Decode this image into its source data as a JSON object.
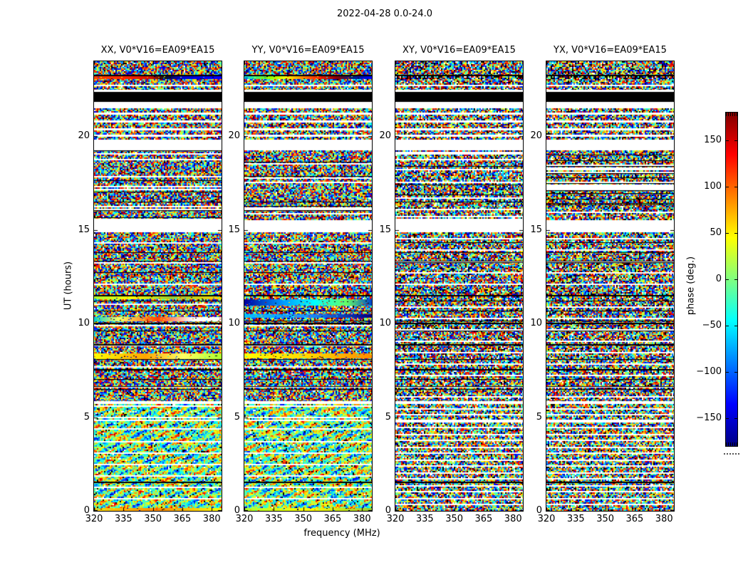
{
  "figure": {
    "title": "2022-04-28 0.0-24.0",
    "background": "#ffffff"
  },
  "chart_data": {
    "type": "heatmap",
    "title": "2022-04-28 0.0-24.0",
    "description": "Four visibility-phase waterfall panels (polarizations XX, YY, XY, YX) for baseline V0*V16=EA09*EA15; phase is noise-like, uniformly distributed in [-180,180] deg; white rows are flagged time gaps, black rows are saturated scans.",
    "x": {
      "label": "frequency (MHz)",
      "lim": [
        320,
        385
      ],
      "ticks": [
        320,
        335,
        350,
        365,
        380
      ]
    },
    "y": {
      "label": "UT (hours)",
      "lim": [
        0,
        24
      ],
      "ticks": [
        0,
        5,
        10,
        15,
        20
      ]
    },
    "colorbar": {
      "label": "phase (deg.)",
      "lim": [
        -180,
        180
      ],
      "ticks": [
        150,
        100,
        50,
        0,
        -50,
        -100,
        -150
      ],
      "tick_labels": [
        "150",
        "100",
        "50",
        "0",
        "−50",
        "−100",
        "−150"
      ],
      "colormap": "jet",
      "stops": [
        [
          0,
          "#000083"
        ],
        [
          0.125,
          "#0000ff"
        ],
        [
          0.375,
          "#00ffff"
        ],
        [
          0.625,
          "#ffff00"
        ],
        [
          0.875,
          "#ff0000"
        ],
        [
          1,
          "#800000"
        ]
      ]
    },
    "panels": [
      {
        "id": "XX",
        "title": "XX, V0*V16=EA09*EA15",
        "seed": 11,
        "white_frac": 0.02,
        "dark_frac": 0.04,
        "sep_factor": 1.0,
        "moire_mix": 0.45
      },
      {
        "id": "YY",
        "title": "YY, V0*V16=EA09*EA15",
        "seed": 22,
        "white_frac": 0.02,
        "dark_frac": 0.04,
        "sep_factor": 1.0,
        "moire_mix": 0.45
      },
      {
        "id": "XY",
        "title": "XY, V0*V16=EA09*EA15",
        "seed": 33,
        "white_frac": 0.05,
        "dark_frac": 0.08,
        "sep_factor": 0.55,
        "moire_mix": 0.9
      },
      {
        "id": "YX",
        "title": "YX, V0*V16=EA09*EA15",
        "seed": 44,
        "white_frac": 0.05,
        "dark_frac": 0.08,
        "sep_factor": 0.55,
        "moire_mix": 0.9
      }
    ],
    "time_structure": [
      {
        "t0": 23.28,
        "t1": 24.0,
        "type": "noise"
      },
      {
        "t0": 23.2,
        "t1": 23.28,
        "type": "black"
      },
      {
        "t0": 22.74,
        "t1": 23.05,
        "type": "noise"
      },
      {
        "t0": 22.68,
        "t1": 22.74,
        "type": "white"
      },
      {
        "t0": 22.48,
        "t1": 22.68,
        "type": "noise"
      },
      {
        "t0": 22.36,
        "t1": 22.48,
        "type": "white"
      },
      {
        "t0": 21.83,
        "t1": 22.36,
        "type": "black"
      },
      {
        "t0": 21.49,
        "t1": 21.83,
        "type": "white"
      },
      {
        "t0": 21.26,
        "t1": 21.49,
        "type": "noise"
      },
      {
        "t0": 21.14,
        "t1": 21.26,
        "type": "white"
      },
      {
        "t0": 20.84,
        "t1": 21.14,
        "type": "noise"
      },
      {
        "t0": 20.72,
        "t1": 20.84,
        "type": "white"
      },
      {
        "t0": 20.44,
        "t1": 20.72,
        "type": "noise"
      },
      {
        "t0": 20.32,
        "t1": 20.44,
        "type": "white"
      },
      {
        "t0": 20.1,
        "t1": 20.32,
        "type": "noise"
      },
      {
        "t0": 19.98,
        "t1": 20.1,
        "type": "white"
      },
      {
        "t0": 19.8,
        "t1": 19.98,
        "type": "noise"
      },
      {
        "t0": 19.25,
        "t1": 19.8,
        "type": "white"
      },
      {
        "t0": 15.5,
        "t1": 19.25,
        "type": "striped"
      },
      {
        "t0": 14.88,
        "t1": 15.5,
        "type": "white"
      },
      {
        "t0": 5.85,
        "t1": 14.88,
        "type": "noise",
        "sep": 1.1,
        "bsep": 0.52
      },
      {
        "t0": 5.7,
        "t1": 5.85,
        "type": "white"
      },
      {
        "t0": 0.0,
        "t1": 5.7,
        "type": "noise",
        "sep": 0.62,
        "moire": true
      },
      {
        "t0": 4.78,
        "t1": 4.86,
        "type": "white"
      },
      {
        "t0": 13.3,
        "t1": 13.36,
        "type": "black"
      },
      {
        "t0": 11.46,
        "t1": 11.52,
        "type": "black"
      },
      {
        "t0": 9.98,
        "t1": 10.04,
        "type": "black"
      },
      {
        "t0": 8.84,
        "t1": 8.9,
        "type": "black"
      },
      {
        "t0": 7.5,
        "t1": 7.56,
        "type": "black"
      },
      {
        "t0": 6.6,
        "t1": 6.66,
        "type": "black"
      },
      {
        "t0": 1.5,
        "t1": 1.56,
        "type": "black"
      }
    ],
    "panel_overlays": {
      "XX": [
        {
          "t0": 23.05,
          "t1": 23.2,
          "type": "smooth",
          "colors": [
            [
              0,
              "#ff4500"
            ],
            [
              0.25,
              "#ff2200"
            ],
            [
              0.45,
              "#cc1100"
            ],
            [
              0.55,
              "#111111"
            ],
            [
              0.68,
              "#0000cd"
            ],
            [
              1,
              "#0000ff"
            ]
          ]
        },
        {
          "t0": 11.28,
          "t1": 11.44,
          "type": "smooth",
          "colors": [
            [
              0,
              "#adff2f"
            ],
            [
              0.3,
              "#ffff00"
            ],
            [
              0.6,
              "#9acd32"
            ],
            [
              1,
              "#ffd700"
            ]
          ]
        },
        {
          "t0": 10.1,
          "t1": 10.35,
          "type": "smooth",
          "colors": [
            [
              0,
              "#00ced1"
            ],
            [
              0.2,
              "#ffff66"
            ],
            [
              0.5,
              "#ff4500"
            ],
            [
              0.78,
              "#ffffff"
            ],
            [
              1,
              "#ffffff"
            ]
          ]
        },
        {
          "t0": 8.1,
          "t1": 8.4,
          "type": "smooth",
          "colors": [
            [
              0,
              "#ffff00"
            ],
            [
              0.4,
              "#ffa500"
            ],
            [
              0.7,
              "#ffff66"
            ],
            [
              1,
              "#adff2f"
            ]
          ]
        },
        {
          "t0": 0.0,
          "t1": 0.16,
          "type": "smooth",
          "colors": [
            [
              0,
              "#ffd700"
            ],
            [
              0.5,
              "#ff8c00"
            ],
            [
              1,
              "#ffff00"
            ]
          ]
        }
      ],
      "YY": [
        {
          "t0": 23.05,
          "t1": 23.2,
          "type": "smooth",
          "colors": [
            [
              0,
              "#00e5ee"
            ],
            [
              0.18,
              "#7cfc00"
            ],
            [
              0.33,
              "#ffff00"
            ],
            [
              0.45,
              "#ff8c00"
            ],
            [
              0.58,
              "#ff2200"
            ],
            [
              0.72,
              "#8b0000"
            ],
            [
              0.85,
              "#001f7e"
            ],
            [
              1,
              "#0000ff"
            ]
          ]
        },
        {
          "t0": 10.95,
          "t1": 11.3,
          "type": "smooth",
          "colors": [
            [
              0,
              "#000099"
            ],
            [
              0.3,
              "#0099ff"
            ],
            [
              0.55,
              "#00ffff"
            ],
            [
              0.8,
              "#66ff66"
            ],
            [
              1,
              "#0044cc"
            ]
          ]
        },
        {
          "t0": 10.3,
          "t1": 10.5,
          "type": "smooth",
          "colors": [
            [
              0,
              "#00bfff"
            ],
            [
              0.5,
              "#1e90ff"
            ],
            [
              1,
              "#000080"
            ]
          ]
        },
        {
          "t0": 8.15,
          "t1": 8.4,
          "type": "smooth",
          "colors": [
            [
              0,
              "#ffff00"
            ],
            [
              0.5,
              "#ffd700"
            ],
            [
              1,
              "#ff8c00"
            ]
          ]
        },
        {
          "t0": 0.0,
          "t1": 0.16,
          "type": "smooth",
          "colors": [
            [
              0,
              "#adff2f"
            ],
            [
              0.5,
              "#ffff00"
            ],
            [
              1,
              "#9acd32"
            ]
          ]
        }
      ],
      "XY": [
        {
          "t0": 23.05,
          "t1": 23.2,
          "type": "noise",
          "dark": 0.35
        }
      ],
      "YX": [
        {
          "t0": 23.05,
          "t1": 23.2,
          "type": "noise",
          "dark": 0.35
        }
      ]
    }
  },
  "labels": {
    "xlabel": "frequency (MHz)",
    "ylabel": "UT (hours)",
    "colorbar_label": "phase (deg.)"
  }
}
